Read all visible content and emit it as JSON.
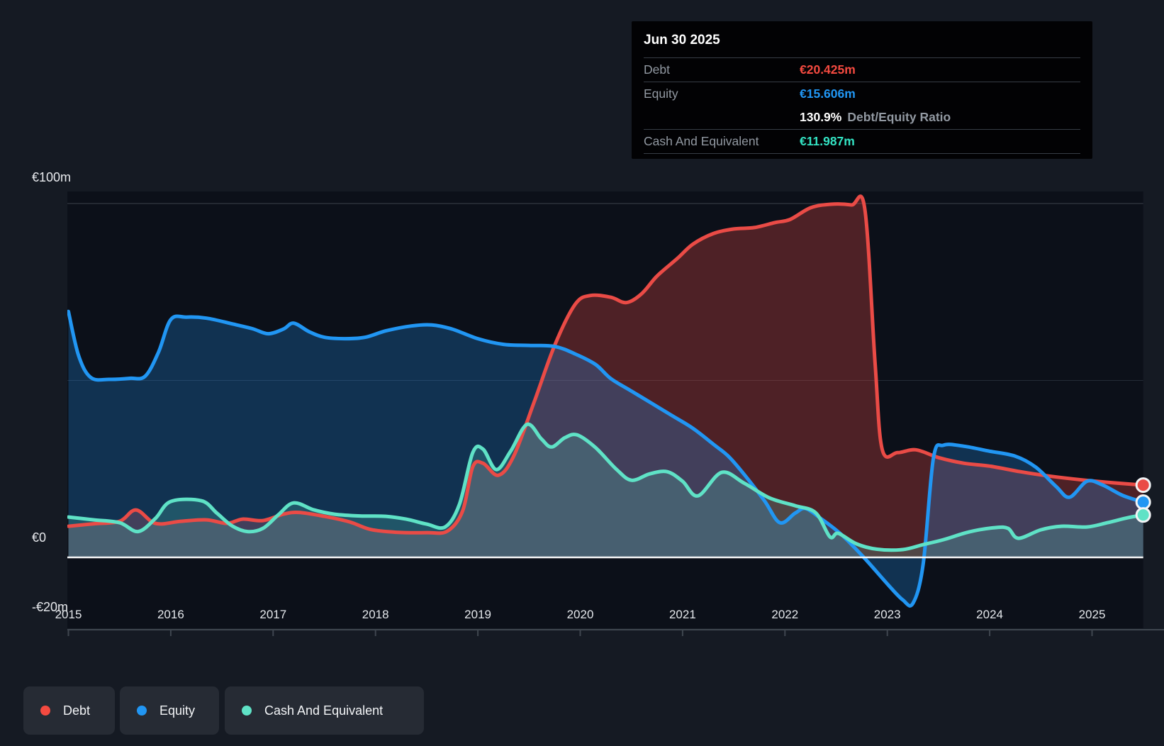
{
  "tooltip": {
    "title": "Jun 30 2025",
    "debt_label": "Debt",
    "debt_value": "€20.425m",
    "equity_label": "Equity",
    "equity_value": "€15.606m",
    "ratio_value": "130.9%",
    "ratio_label": "Debt/Equity Ratio",
    "cash_label": "Cash And Equivalent",
    "cash_value": "€11.987m"
  },
  "y_axis": {
    "top": "€100m",
    "zero": "€0",
    "bottom": "-€20m"
  },
  "x_axis": {
    "years": [
      "2015",
      "2016",
      "2017",
      "2018",
      "2019",
      "2020",
      "2021",
      "2022",
      "2023",
      "2024",
      "2025"
    ]
  },
  "legend": {
    "debt": "Debt",
    "equity": "Equity",
    "cash": "Cash And Equivalent"
  },
  "colors": {
    "debt": "#ea4b46",
    "equity": "#2196f3",
    "cash": "#5fe2c6",
    "debt_text": "#f44a40",
    "equity_text": "#2196f3",
    "cash_text": "#33e3c3",
    "debt_fill": "rgba(233,73,71,0.30)",
    "equity_fill": "rgba(33,150,243,0.26)",
    "cash_fill": "rgba(95,226,198,0.20)",
    "zero_line": "#f7f8f9",
    "grid_major": "#3b424c",
    "grid_minor": "#242b36",
    "axis_line": "#3f464f",
    "plot_bg": "#0c1019"
  },
  "chart_data": {
    "type": "area",
    "title": "Debt to Equity history (Jun 30 2025: Debt €20.425m, Equity €15.606m, Cash €11.987m)",
    "x_unit": "year",
    "x_range": [
      2015,
      2025.5
    ],
    "y_unit": "€m",
    "ylim": [
      -20,
      105
    ],
    "legend_position": "bottom-left",
    "y_gridlines": [
      {
        "value": 100,
        "label": "€100m"
      },
      {
        "value": 50,
        "label": ""
      },
      {
        "value": 0,
        "label": "€0"
      },
      {
        "value": -20,
        "label": "-€20m"
      }
    ],
    "series": [
      {
        "name": "Debt",
        "points": [
          [
            2015.0,
            8.8
          ],
          [
            2015.25,
            9.5
          ],
          [
            2015.5,
            10.2
          ],
          [
            2015.66,
            13.4
          ],
          [
            2015.85,
            9.6
          ],
          [
            2016.1,
            10.2
          ],
          [
            2016.35,
            10.6
          ],
          [
            2016.55,
            9.6
          ],
          [
            2016.7,
            10.8
          ],
          [
            2016.9,
            10.4
          ],
          [
            2017.1,
            12.2
          ],
          [
            2017.25,
            12.7
          ],
          [
            2017.5,
            11.6
          ],
          [
            2017.75,
            10.0
          ],
          [
            2017.95,
            7.9
          ],
          [
            2018.2,
            7.1
          ],
          [
            2018.5,
            7.0
          ],
          [
            2018.7,
            7.4
          ],
          [
            2018.85,
            13.0
          ],
          [
            2018.95,
            25.6
          ],
          [
            2019.05,
            26.6
          ],
          [
            2019.2,
            23.2
          ],
          [
            2019.35,
            28.6
          ],
          [
            2019.55,
            43.9
          ],
          [
            2019.75,
            59.9
          ],
          [
            2019.95,
            71.5
          ],
          [
            2020.1,
            74.0
          ],
          [
            2020.3,
            73.5
          ],
          [
            2020.45,
            72.0
          ],
          [
            2020.6,
            74.5
          ],
          [
            2020.75,
            79.5
          ],
          [
            2020.95,
            84.5
          ],
          [
            2021.1,
            88.5
          ],
          [
            2021.3,
            91.5
          ],
          [
            2021.5,
            92.8
          ],
          [
            2021.7,
            93.2
          ],
          [
            2021.9,
            94.6
          ],
          [
            2022.05,
            95.5
          ],
          [
            2022.25,
            98.8
          ],
          [
            2022.45,
            99.8
          ],
          [
            2022.65,
            99.6
          ],
          [
            2022.78,
            98.5
          ],
          [
            2022.88,
            55.0
          ],
          [
            2022.95,
            30.5
          ],
          [
            2023.1,
            29.6
          ],
          [
            2023.28,
            30.4
          ],
          [
            2023.5,
            28.2
          ],
          [
            2023.75,
            26.6
          ],
          [
            2024.0,
            25.8
          ],
          [
            2024.3,
            24.2
          ],
          [
            2024.6,
            22.9
          ],
          [
            2024.9,
            21.9
          ],
          [
            2025.2,
            21.1
          ],
          [
            2025.5,
            20.425
          ]
        ]
      },
      {
        "name": "Equity",
        "points": [
          [
            2015.0,
            69.5
          ],
          [
            2015.1,
            57.0
          ],
          [
            2015.22,
            50.8
          ],
          [
            2015.4,
            50.3
          ],
          [
            2015.6,
            50.6
          ],
          [
            2015.75,
            51.2
          ],
          [
            2015.88,
            58.0
          ],
          [
            2016.0,
            67.2
          ],
          [
            2016.15,
            67.9
          ],
          [
            2016.35,
            67.6
          ],
          [
            2016.6,
            66.0
          ],
          [
            2016.8,
            64.6
          ],
          [
            2016.95,
            63.2
          ],
          [
            2017.1,
            64.5
          ],
          [
            2017.2,
            66.2
          ],
          [
            2017.35,
            63.8
          ],
          [
            2017.5,
            62.2
          ],
          [
            2017.7,
            61.8
          ],
          [
            2017.9,
            62.2
          ],
          [
            2018.1,
            64.0
          ],
          [
            2018.35,
            65.4
          ],
          [
            2018.55,
            65.7
          ],
          [
            2018.75,
            64.5
          ],
          [
            2019.0,
            61.8
          ],
          [
            2019.25,
            60.2
          ],
          [
            2019.5,
            59.9
          ],
          [
            2019.75,
            59.6
          ],
          [
            2019.95,
            57.5
          ],
          [
            2020.15,
            54.5
          ],
          [
            2020.3,
            50.5
          ],
          [
            2020.5,
            47.0
          ],
          [
            2020.7,
            43.5
          ],
          [
            2020.9,
            40.0
          ],
          [
            2021.1,
            36.5
          ],
          [
            2021.3,
            32.0
          ],
          [
            2021.45,
            28.5
          ],
          [
            2021.6,
            23.5
          ],
          [
            2021.8,
            16.0
          ],
          [
            2021.95,
            9.8
          ],
          [
            2022.1,
            12.5
          ],
          [
            2022.2,
            13.8
          ],
          [
            2022.35,
            11.0
          ],
          [
            2022.55,
            6.5
          ],
          [
            2022.77,
            0.0
          ],
          [
            2023.0,
            -7.5
          ],
          [
            2023.15,
            -12.0
          ],
          [
            2023.25,
            -13.0
          ],
          [
            2023.35,
            -2.0
          ],
          [
            2023.45,
            28.0
          ],
          [
            2023.55,
            31.7
          ],
          [
            2023.75,
            31.4
          ],
          [
            2024.0,
            30.0
          ],
          [
            2024.25,
            28.6
          ],
          [
            2024.45,
            25.5
          ],
          [
            2024.65,
            20.0
          ],
          [
            2024.78,
            17.0
          ],
          [
            2024.95,
            21.5
          ],
          [
            2025.1,
            20.5
          ],
          [
            2025.3,
            17.5
          ],
          [
            2025.5,
            15.606
          ]
        ]
      },
      {
        "name": "Cash And Equivalent",
        "points": [
          [
            2015.0,
            11.4
          ],
          [
            2015.25,
            10.6
          ],
          [
            2015.5,
            9.8
          ],
          [
            2015.68,
            7.3
          ],
          [
            2015.85,
            11.0
          ],
          [
            2016.0,
            15.8
          ],
          [
            2016.3,
            16.0
          ],
          [
            2016.45,
            12.5
          ],
          [
            2016.6,
            8.9
          ],
          [
            2016.75,
            7.3
          ],
          [
            2016.9,
            8.2
          ],
          [
            2017.05,
            12.0
          ],
          [
            2017.2,
            15.4
          ],
          [
            2017.4,
            13.4
          ],
          [
            2017.6,
            12.2
          ],
          [
            2017.85,
            11.7
          ],
          [
            2018.1,
            11.6
          ],
          [
            2018.3,
            10.8
          ],
          [
            2018.5,
            9.4
          ],
          [
            2018.68,
            8.6
          ],
          [
            2018.82,
            15.0
          ],
          [
            2018.95,
            29.6
          ],
          [
            2019.05,
            30.6
          ],
          [
            2019.18,
            24.8
          ],
          [
            2019.32,
            30.0
          ],
          [
            2019.48,
            37.6
          ],
          [
            2019.62,
            33.5
          ],
          [
            2019.72,
            31.2
          ],
          [
            2019.85,
            33.8
          ],
          [
            2019.97,
            34.6
          ],
          [
            2020.15,
            31.0
          ],
          [
            2020.35,
            25.0
          ],
          [
            2020.5,
            21.8
          ],
          [
            2020.68,
            23.6
          ],
          [
            2020.85,
            24.2
          ],
          [
            2021.0,
            21.5
          ],
          [
            2021.15,
            17.4
          ],
          [
            2021.38,
            24.0
          ],
          [
            2021.6,
            21.0
          ],
          [
            2021.85,
            16.8
          ],
          [
            2022.1,
            14.6
          ],
          [
            2022.3,
            12.6
          ],
          [
            2022.44,
            5.8
          ],
          [
            2022.52,
            6.8
          ],
          [
            2022.7,
            3.8
          ],
          [
            2022.9,
            2.3
          ],
          [
            2023.15,
            2.2
          ],
          [
            2023.35,
            3.6
          ],
          [
            2023.55,
            5.0
          ],
          [
            2023.8,
            7.2
          ],
          [
            2024.05,
            8.4
          ],
          [
            2024.18,
            8.2
          ],
          [
            2024.28,
            5.4
          ],
          [
            2024.5,
            7.8
          ],
          [
            2024.7,
            8.8
          ],
          [
            2024.95,
            8.6
          ],
          [
            2025.15,
            9.8
          ],
          [
            2025.35,
            11.2
          ],
          [
            2025.5,
            11.987
          ]
        ]
      }
    ],
    "end_point_values": {
      "debt": 20.425,
      "equity": 15.606,
      "cash": 11.987
    }
  }
}
